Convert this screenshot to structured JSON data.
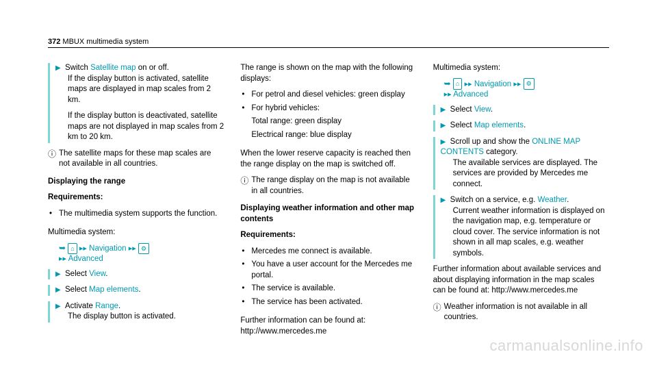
{
  "header": {
    "page_number": "372",
    "section_title": "MBUX multimedia system"
  },
  "col1": {
    "step1": {
      "intro": "Switch ",
      "link": "Satellite map",
      "after": " on or off.",
      "line2": "If the display button is activated, satellite maps are displayed in map scales from 2 km.",
      "line3": "If the display button is deactivated, satellite maps are not displayed in map scales from 2 km to 20 km."
    },
    "info1": "The satellite maps for these map scales are not available in all countries.",
    "heading1": "Displaying the range",
    "heading2": "Requirements:",
    "req1": "The multimedia system supports the function.",
    "multimedia_label": "Multimedia system:",
    "nav_text": "Navigation",
    "advanced_text": "Advanced",
    "step_view_pre": "Select ",
    "step_view_link": "View",
    "step_map_pre": "Select ",
    "step_map_link": "Map elements",
    "step_range_pre": "Activate ",
    "step_range_link": "Range",
    "step_range_after": "The display button is activated."
  },
  "col2": {
    "intro": "The range is shown on the map with the following displays:",
    "bullet1": "For petrol and diesel vehicles: green display",
    "bullet2": "For hybrid vehicles:",
    "bullet2a": "Total range: green display",
    "bullet2b": "Electrical range: blue display",
    "para2": "When the lower reserve capacity is reached then the range display on the map is switched off.",
    "info2": "The range display on the map is not available in all countries.",
    "heading3": "Displaying weather information and other map contents",
    "heading4": "Requirements:",
    "req_b1": "Mercedes me connect is available.",
    "req_b2": "You have a user account for the Mercedes me portal.",
    "req_b3": "The service is available.",
    "req_b4": "The service has been activated.",
    "further": "Further information can be found at: http://www.mercedes.me"
  },
  "col3": {
    "multimedia_label": "Multimedia system:",
    "nav_text": "Navigation",
    "advanced_text": "Advanced",
    "step_view_pre": "Select ",
    "step_view_link": "View",
    "step_map_pre": "Select ",
    "step_map_link": "Map elements",
    "step_scroll_pre": "Scroll up and show the ",
    "step_scroll_link": "ONLINE MAP CONTENTS",
    "step_scroll_after": " category.",
    "step_scroll_desc": "The available services are displayed. The services are provided by Mercedes me connect.",
    "step_weather_pre": "Switch on a service, e.g. ",
    "step_weather_link": "Weather",
    "step_weather_desc": "Current weather information is displayed on the navigation map, e.g. temperature or cloud cover. The service information is not shown in all map scales, e.g. weather symbols.",
    "further3": "Further information about available services and about displaying information in the map scales can be found at: http://www.mercedes.me",
    "info3": "Weather information is not available in all countries."
  },
  "watermark": "carmanualsonline.info"
}
